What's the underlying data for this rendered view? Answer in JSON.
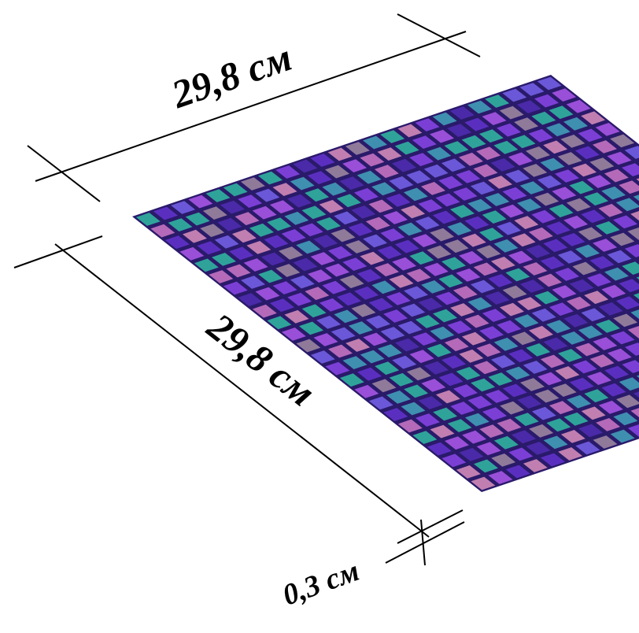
{
  "dimensions": {
    "width": "29,8 см",
    "length": "29,8 см",
    "thickness": "0,3 см"
  }
}
